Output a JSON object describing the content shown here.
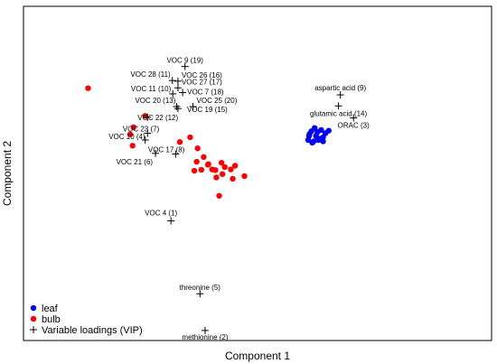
{
  "chart_data": {
    "type": "scatter",
    "title": "",
    "xlabel": "Component 1",
    "ylabel": "Component 2",
    "xlim": [
      0,
      1
    ],
    "ylim": [
      0,
      1
    ],
    "grid": false,
    "legend_position": "bottom-left",
    "legend": [
      {
        "name": "leaf",
        "marker": "dot",
        "color": "#0000ff"
      },
      {
        "name": "bulb",
        "marker": "dot",
        "color": "#ff0000"
      },
      {
        "name": "Variable loadings (VIP)",
        "marker": "plus",
        "color": "#000000"
      }
    ],
    "series": [
      {
        "name": "leaf",
        "marker": "dot",
        "color": "#0000ff",
        "points": [
          [
            0.62,
            0.596
          ],
          [
            0.63,
            0.6
          ],
          [
            0.64,
            0.608
          ],
          [
            0.61,
            0.612
          ],
          [
            0.645,
            0.62
          ],
          [
            0.628,
            0.624
          ],
          [
            0.615,
            0.626
          ],
          [
            0.636,
            0.63
          ],
          [
            0.622,
            0.636
          ],
          [
            0.652,
            0.628
          ],
          [
            0.608,
            0.6
          ],
          [
            0.617,
            0.592
          ],
          [
            0.632,
            0.604
          ],
          [
            0.625,
            0.612
          ],
          [
            0.64,
            0.596
          ],
          [
            0.611,
            0.618
          ]
        ]
      },
      {
        "name": "bulb",
        "marker": "dot",
        "color": "#ff0000",
        "points": [
          [
            0.138,
            0.755
          ],
          [
            0.26,
            0.672
          ],
          [
            0.235,
            0.638
          ],
          [
            0.228,
            0.617
          ],
          [
            0.233,
            0.583
          ],
          [
            0.334,
            0.594
          ],
          [
            0.356,
            0.608
          ],
          [
            0.372,
            0.575
          ],
          [
            0.37,
            0.535
          ],
          [
            0.365,
            0.508
          ],
          [
            0.38,
            0.511
          ],
          [
            0.394,
            0.526
          ],
          [
            0.403,
            0.512
          ],
          [
            0.412,
            0.488
          ],
          [
            0.425,
            0.498
          ],
          [
            0.43,
            0.519
          ],
          [
            0.443,
            0.512
          ],
          [
            0.452,
            0.523
          ],
          [
            0.423,
            0.532
          ],
          [
            0.385,
            0.549
          ],
          [
            0.447,
            0.484
          ],
          [
            0.472,
            0.492
          ],
          [
            0.418,
            0.433
          ],
          [
            0.395,
            0.528
          ],
          [
            0.41,
            0.51
          ]
        ]
      }
    ],
    "loadings": [
      {
        "label": "VOC 9 (19)",
        "x": 0.345,
        "y": 0.82,
        "anchor": "middle",
        "dx": 0,
        "dy": -4
      },
      {
        "label": "VOC 28 (11)",
        "x": 0.318,
        "y": 0.778,
        "anchor": "end",
        "dx": -2,
        "dy": -4
      },
      {
        "label": "VOC 26 (16)",
        "x": 0.33,
        "y": 0.776,
        "anchor": "start",
        "dx": 4,
        "dy": -4
      },
      {
        "label": "VOC 27 (17)",
        "x": 0.33,
        "y": 0.756,
        "anchor": "start",
        "dx": 4,
        "dy": -4
      },
      {
        "label": "VOC 11 (10)",
        "x": 0.319,
        "y": 0.738,
        "anchor": "end",
        "dx": -2,
        "dy": -3
      },
      {
        "label": "VOC 7 (18)",
        "x": 0.34,
        "y": 0.742,
        "anchor": "start",
        "dx": 5,
        "dy": 2
      },
      {
        "label": "VOC 20 (13)",
        "x": 0.327,
        "y": 0.7,
        "anchor": "end",
        "dx": -1,
        "dy": -4
      },
      {
        "label": "VOC 25 (20)",
        "x": 0.362,
        "y": 0.7,
        "anchor": "start",
        "dx": 4,
        "dy": -4
      },
      {
        "label": "VOC 19 (15)",
        "x": 0.33,
        "y": 0.694,
        "anchor": "start",
        "dx": 10,
        "dy": 4
      },
      {
        "label": "VOC 22 (12)",
        "x": 0.265,
        "y": 0.668,
        "anchor": "start",
        "dx": -11,
        "dy": 3
      },
      {
        "label": "VOC 23 (7)",
        "x": 0.265,
        "y": 0.62,
        "anchor": "end",
        "dx": 13,
        "dy": -2
      },
      {
        "label": "VOC 10 (4)",
        "x": 0.26,
        "y": 0.6,
        "anchor": "end",
        "dx": 0,
        "dy": -1
      },
      {
        "label": "VOC 17 (8)",
        "x": 0.325,
        "y": 0.558,
        "anchor": "end",
        "dx": 10,
        "dy": -2
      },
      {
        "label": "VOC 21 (6)",
        "x": 0.282,
        "y": 0.56,
        "anchor": "end",
        "dx": -3,
        "dy": 12
      },
      {
        "label": "VOC 4 (1)",
        "x": 0.315,
        "y": 0.358,
        "anchor": "end",
        "dx": 7,
        "dy": -6
      },
      {
        "label": "threonine (5)",
        "x": 0.377,
        "y": 0.14,
        "anchor": "middle",
        "dx": 0,
        "dy": -4
      },
      {
        "label": "methionine (2)",
        "x": 0.388,
        "y": 0.03,
        "anchor": "middle",
        "dx": 0,
        "dy": 10
      },
      {
        "label": "aspartic acid (9)",
        "x": 0.677,
        "y": 0.735,
        "anchor": "middle",
        "dx": 0,
        "dy": -5
      },
      {
        "label": "glutamic acid (14)",
        "x": 0.673,
        "y": 0.702,
        "anchor": "middle",
        "dx": 0,
        "dy": 11
      },
      {
        "label": "ORAC (3)",
        "x": 0.705,
        "y": 0.666,
        "anchor": "middle",
        "dx": 0,
        "dy": 11
      }
    ]
  }
}
